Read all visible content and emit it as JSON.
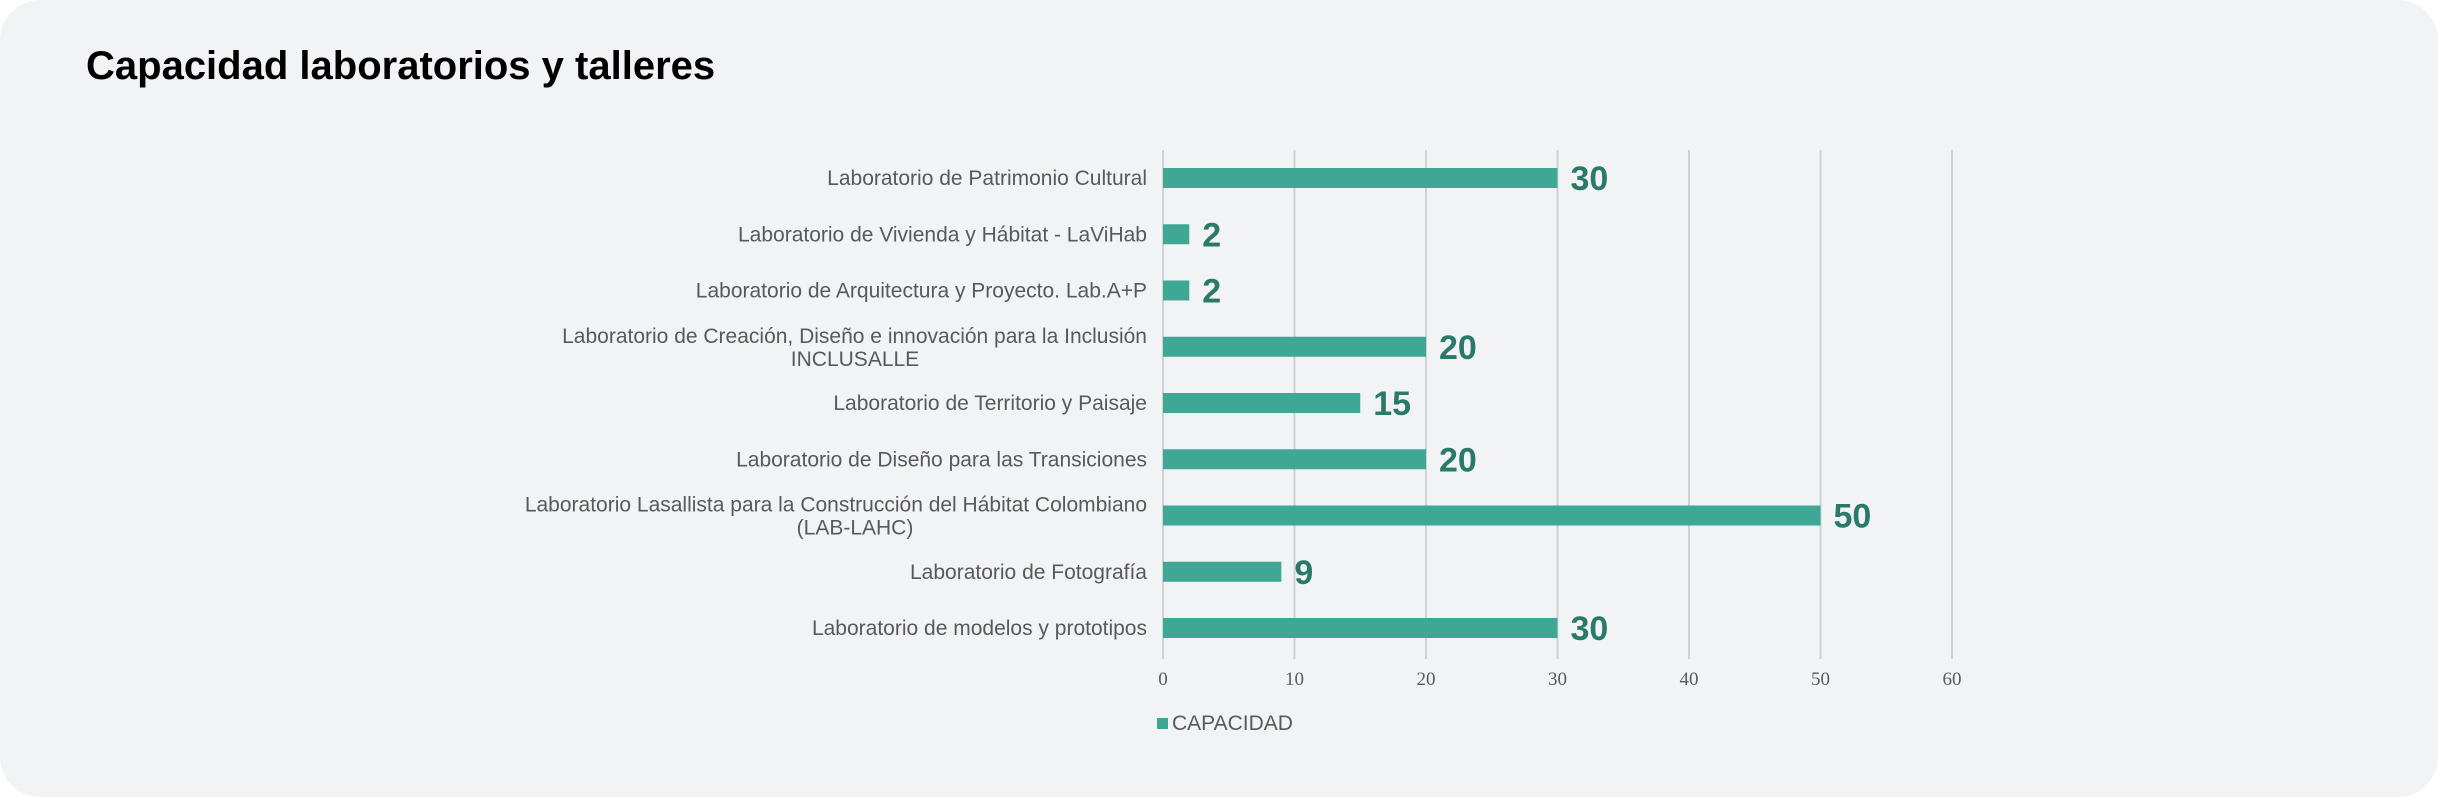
{
  "chart_data": {
    "type": "bar",
    "orientation": "horizontal",
    "title": "Capacidad laboratorios y talleres",
    "categories": [
      [
        "Laboratorio de Patrimonio Cultural"
      ],
      [
        "Laboratorio de Vivienda y Hábitat - LaViHab"
      ],
      [
        "Laboratorio de Arquitectura y Proyecto. Lab.A+P"
      ],
      [
        "Laboratorio de Creación, Diseño e innovación para la Inclusión",
        "INCLUSALLE"
      ],
      [
        "Laboratorio de Territorio y Paisaje"
      ],
      [
        "Laboratorio de Diseño para las Transiciones"
      ],
      [
        "Laboratorio Lasallista para la Construcción del Hábitat Colombiano",
        "(LAB-LAHC)"
      ],
      [
        "Laboratorio de Fotografía"
      ],
      [
        "Laboratorio de modelos y prototipos"
      ]
    ],
    "series": [
      {
        "name": "CAPACIDAD",
        "values": [
          30,
          2,
          2,
          20,
          15,
          20,
          50,
          9,
          30
        ]
      }
    ],
    "xlim": [
      0,
      60
    ],
    "xticks": [
      0,
      10,
      20,
      30,
      40,
      50,
      60
    ],
    "xlabel": "",
    "ylabel": "",
    "grid": true,
    "legend_position": "bottom",
    "colors": {
      "bar": "#3fa895",
      "data_label": "#2a7a6a",
      "gridline": "#cfd1d4",
      "axis_text": "#595959",
      "category_text": "#595959"
    }
  }
}
